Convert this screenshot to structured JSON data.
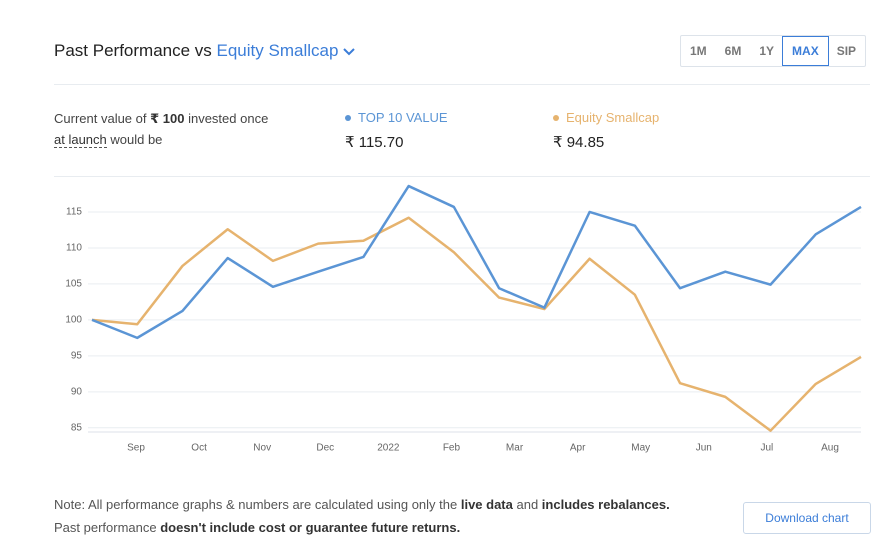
{
  "header": {
    "title": "Past Performance vs",
    "compare": "Equity Smallcap",
    "ranges": [
      "1M",
      "6M",
      "1Y",
      "MAX",
      "SIP"
    ],
    "selected_range": 3
  },
  "summary": {
    "lines": [
      [
        {
          "text": "Current value of ",
          "style": "plain"
        },
        {
          "text": "₹ 100",
          "style": "bold"
        },
        {
          "text": " invested once",
          "style": "plain"
        }
      ],
      [
        {
          "text": "at launch",
          "style": "underline"
        },
        {
          "text": " would be",
          "style": "plain"
        }
      ]
    ],
    "values": [
      "₹ 115.70",
      "₹ 94.85"
    ]
  },
  "chart_data": {
    "type": "line",
    "x_labels": [
      "Sep",
      "Oct",
      "Nov",
      "Dec",
      "2022",
      "Feb",
      "Mar",
      "Apr",
      "May",
      "Jun",
      "Jul",
      "Aug"
    ],
    "series": [
      {
        "name": "TOP 10 VALUE",
        "color": "#5b95d5",
        "values": [
          100,
          97.5,
          101.25,
          108.6,
          104.6,
          106.7,
          108.75,
          118.6,
          115.7,
          104.4,
          101.7,
          115,
          113.1,
          104.4,
          106.7,
          104.9,
          111.9,
          115.7
        ]
      },
      {
        "name": "Equity Smallcap",
        "color": "#e6b36e",
        "values": [
          100,
          99.4,
          107.5,
          112.6,
          108.2,
          110.6,
          111,
          114.2,
          109.4,
          103.1,
          101.5,
          108.5,
          103.5,
          91.2,
          89.3,
          84.6,
          91.1,
          94.85
        ]
      }
    ],
    "ylim": [
      84,
      120
    ],
    "yticks": [
      85,
      90,
      95,
      100,
      105,
      110,
      115
    ],
    "grid": true
  },
  "footer": {
    "lines": [
      [
        {
          "text": "Note: All performance graphs & numbers are calculated using only the ",
          "style": "plain"
        },
        {
          "text": "live data",
          "style": "bold"
        },
        {
          "text": " and ",
          "style": "plain"
        },
        {
          "text": "includes rebalances.",
          "style": "bold"
        }
      ],
      [
        {
          "text": "Past performance ",
          "style": "plain"
        },
        {
          "text": "doesn't include cost or guarantee future returns.",
          "style": "bold"
        }
      ]
    ],
    "button": "Download chart"
  }
}
